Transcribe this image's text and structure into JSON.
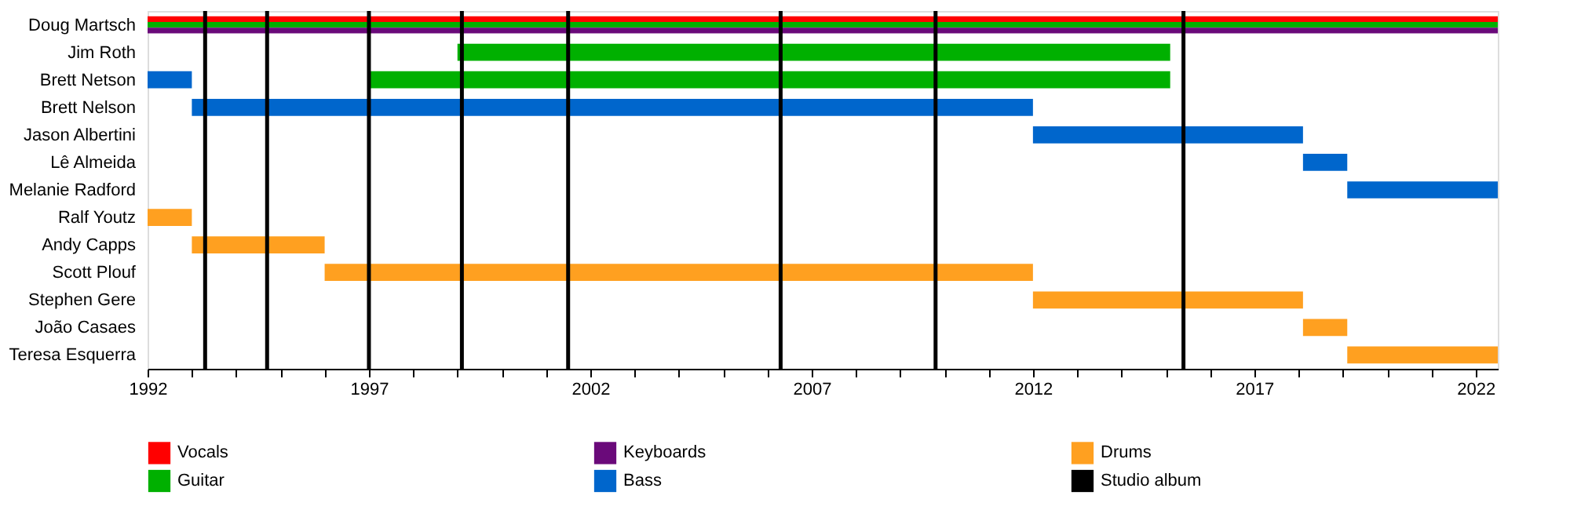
{
  "chart_data": {
    "type": "bar",
    "orientation": "horizontal",
    "categories": [
      "Doug Martsch",
      "Jim Roth",
      "Brett Netson",
      "Brett Nelson",
      "Jason Albertini",
      "Lê Almeida",
      "Melanie Radford",
      "Ralf Youtz",
      "Andy Capps",
      "Scott Plouf",
      "Stephen Gere",
      "João Casaes",
      "Teresa Esquerra"
    ],
    "series": [
      {
        "name": "Vocals",
        "color": "#ff0000",
        "base": [
          1992,
          null,
          null,
          null,
          null,
          null,
          null,
          null,
          null,
          null,
          null,
          null,
          null
        ],
        "values": [
          30.5,
          null,
          null,
          null,
          null,
          null,
          null,
          null,
          null,
          null,
          null,
          null,
          null
        ]
      },
      {
        "name": "Guitar",
        "color": "#00b000",
        "base": [
          1992,
          1999,
          1997,
          null,
          null,
          null,
          null,
          null,
          null,
          null,
          null,
          null,
          null
        ],
        "values": [
          30.5,
          16.1,
          18.1,
          null,
          null,
          null,
          null,
          null,
          null,
          null,
          null,
          null,
          null
        ]
      },
      {
        "name": "Keyboards",
        "color": "#6a0a7a",
        "base": [
          1992,
          null,
          null,
          null,
          null,
          null,
          null,
          null,
          null,
          null,
          null,
          null,
          null
        ],
        "values": [
          30.5,
          null,
          null,
          null,
          null,
          null,
          null,
          null,
          null,
          null,
          null,
          null,
          null
        ]
      },
      {
        "name": "Bass",
        "color": "#0066cc",
        "base": [
          null,
          null,
          1992,
          1993,
          2012,
          2018.1,
          2019.1,
          null,
          null,
          null,
          null,
          null,
          null
        ],
        "values": [
          null,
          null,
          1,
          19,
          6.1,
          1,
          3.4,
          null,
          null,
          null,
          null,
          null,
          null
        ]
      },
      {
        "name": "Drums",
        "color": "#ffa020",
        "base": [
          null,
          null,
          null,
          null,
          null,
          null,
          null,
          1992,
          1993,
          1996,
          2012,
          2018.1,
          2019.1
        ],
        "values": [
          null,
          null,
          null,
          null,
          null,
          null,
          null,
          1,
          3,
          16,
          6.1,
          1,
          3.4
        ]
      }
    ],
    "ref_lines": [
      {
        "axis": "x",
        "value": 1993.3,
        "label": "Studio album",
        "color": "#000000"
      },
      {
        "axis": "x",
        "value": 1994.7,
        "color": "#000000"
      },
      {
        "axis": "x",
        "value": 1997.0,
        "color": "#000000"
      },
      {
        "axis": "x",
        "value": 1999.1,
        "color": "#000000"
      },
      {
        "axis": "x",
        "value": 2001.5,
        "color": "#000000"
      },
      {
        "axis": "x",
        "value": 2006.3,
        "color": "#000000"
      },
      {
        "axis": "x",
        "value": 2009.8,
        "color": "#000000"
      },
      {
        "axis": "x",
        "value": 2015.4,
        "color": "#000000"
      }
    ],
    "xlim": [
      1992,
      2022.5
    ],
    "xticks": [
      1992,
      {
        "value": 1993,
        "label": null
      },
      {
        "value": 1994,
        "label": null
      },
      {
        "value": 1995,
        "label": null
      },
      {
        "value": 1996,
        "label": null
      },
      1997,
      {
        "value": 1998,
        "label": null
      },
      {
        "value": 1999,
        "label": null
      },
      {
        "value": 2000,
        "label": null
      },
      {
        "value": 2001,
        "label": null
      },
      2002,
      {
        "value": 2003,
        "label": null
      },
      {
        "value": 2004,
        "label": null
      },
      {
        "value": 2005,
        "label": null
      },
      {
        "value": 2006,
        "label": null
      },
      2007,
      {
        "value": 2008,
        "label": null
      },
      {
        "value": 2009,
        "label": null
      },
      {
        "value": 2010,
        "label": null
      },
      {
        "value": 2011,
        "label": null
      },
      2012,
      {
        "value": 2013,
        "label": null
      },
      {
        "value": 2014,
        "label": null
      },
      {
        "value": 2015,
        "label": null
      },
      {
        "value": 2016,
        "label": null
      },
      2017,
      {
        "value": 2018,
        "label": null
      },
      {
        "value": 2019,
        "label": null
      },
      {
        "value": 2020,
        "label": null
      },
      {
        "value": 2021,
        "label": null
      },
      2022
    ],
    "grid": false,
    "legend": "bottom"
  }
}
